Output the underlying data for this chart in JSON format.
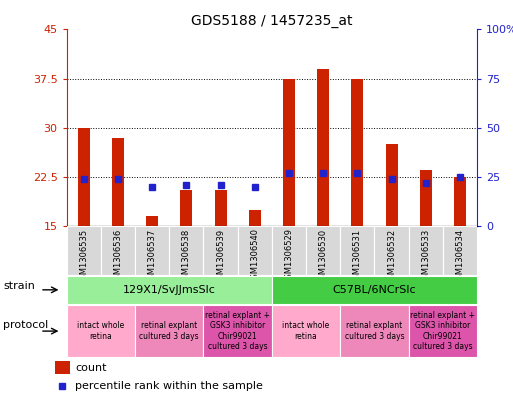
{
  "title": "GDS5188 / 1457235_at",
  "samples": [
    "GSM1306535",
    "GSM1306536",
    "GSM1306537",
    "GSM1306538",
    "GSM1306539",
    "GSM1306540",
    "GSM1306529",
    "GSM1306530",
    "GSM1306531",
    "GSM1306532",
    "GSM1306533",
    "GSM1306534"
  ],
  "counts": [
    30.0,
    28.5,
    16.5,
    20.5,
    20.5,
    17.5,
    37.5,
    39.0,
    37.5,
    27.5,
    23.5,
    22.5
  ],
  "percentiles": [
    24,
    24,
    20,
    21,
    21,
    20,
    27,
    27,
    27,
    24,
    22,
    25
  ],
  "ylim": [
    15,
    45
  ],
  "y_ticks_left": [
    15,
    22.5,
    30,
    37.5,
    45
  ],
  "ytick_labels_left": [
    "15",
    "22.5",
    "30",
    "37.5",
    "45"
  ],
  "y_ticks_right": [
    0,
    25,
    50,
    75,
    100
  ],
  "ytick_labels_right": [
    "0",
    "25",
    "50",
    "75",
    "100%"
  ],
  "bar_color": "#cc2200",
  "dot_color": "#2222cc",
  "grid_color": "#000000",
  "bg_color": "#ffffff",
  "plot_bg": "#ffffff",
  "strain_groups": [
    {
      "label": "129X1/SvJJmsSlc",
      "start": 0,
      "end": 5,
      "color": "#99ee99"
    },
    {
      "label": "C57BL/6NCrSlc",
      "start": 6,
      "end": 11,
      "color": "#44cc44"
    }
  ],
  "protocol_groups": [
    {
      "label": "intact whole\nretina",
      "start": 0,
      "end": 1,
      "color": "#ffaacc"
    },
    {
      "label": "retinal explant\ncultured 3 days",
      "start": 2,
      "end": 3,
      "color": "#ee88bb"
    },
    {
      "label": "retinal explant +\nGSK3 inhibitor\nChir99021\ncultured 3 days",
      "start": 4,
      "end": 5,
      "color": "#dd55aa"
    },
    {
      "label": "intact whole\nretina",
      "start": 6,
      "end": 7,
      "color": "#ffaacc"
    },
    {
      "label": "retinal explant\ncultured 3 days",
      "start": 8,
      "end": 9,
      "color": "#ee88bb"
    },
    {
      "label": "retinal explant +\nGSK3 inhibitor\nChir99021\ncultured 3 days",
      "start": 10,
      "end": 11,
      "color": "#dd55aa"
    }
  ],
  "strain_label": "strain",
  "protocol_label": "protocol",
  "legend_count_label": "count",
  "legend_percentile_label": "percentile rank within the sample",
  "separator_col": 6,
  "n_samples": 12
}
